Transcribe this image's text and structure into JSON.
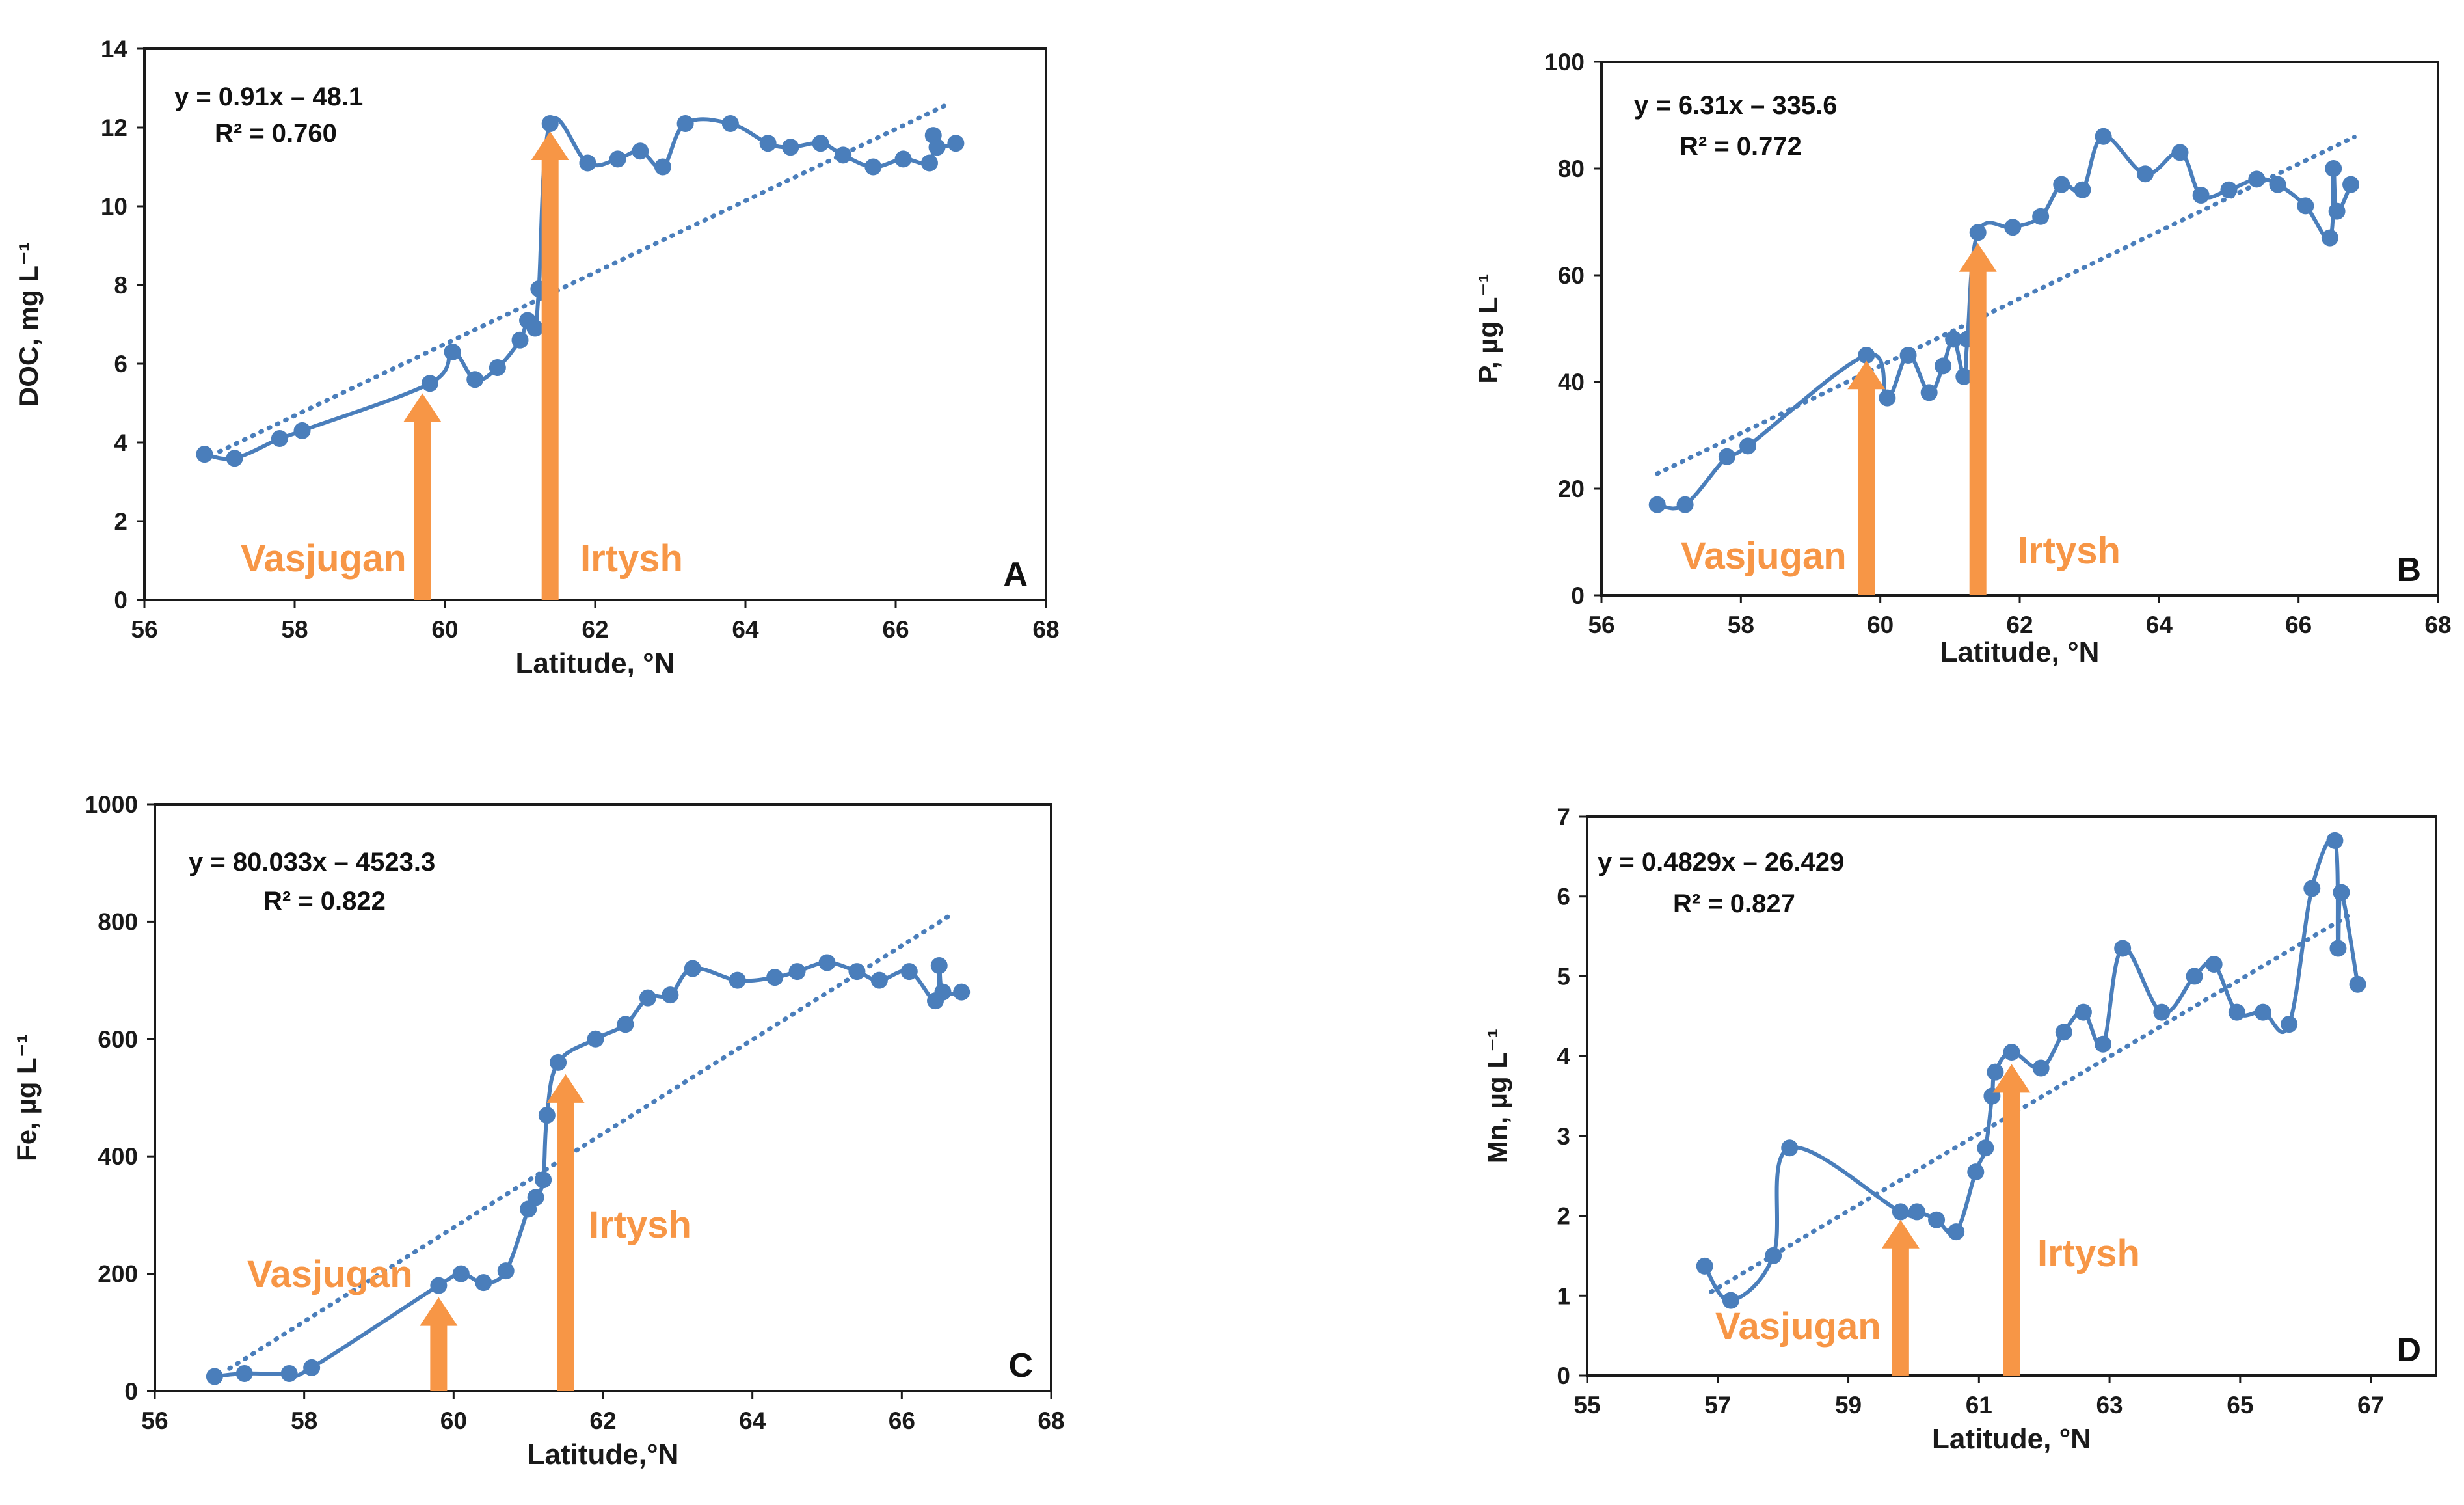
{
  "colors": {
    "series": "#4a7ebb",
    "trend": "#4a7ebb",
    "arrow": "#f79646",
    "axis": "#1a1a1a",
    "text": "#111111"
  },
  "chart_data": [
    {
      "type": "scatter",
      "panel": "A",
      "xlabel": "Latitude, °N",
      "ylabel": "DOC, mg L⁻¹",
      "xlim": [
        56,
        68
      ],
      "xticks": [
        56,
        58,
        60,
        62,
        64,
        66,
        68
      ],
      "ylim": [
        0,
        14
      ],
      "yticks": [
        0,
        2,
        4,
        6,
        8,
        10,
        12,
        14
      ],
      "equation": "y = 0.91x – 48.1",
      "r2": "R² = 0.760",
      "trend": {
        "slope": 0.91,
        "intercept": -48.1,
        "x": [
          57,
          66.7
        ]
      },
      "series": [
        {
          "name": "DOC",
          "x": [
            56.8,
            57.2,
            57.8,
            58.1,
            59.8,
            60.1,
            60.4,
            60.7,
            61.0,
            61.1,
            61.2,
            61.25,
            61.4,
            61.9,
            62.3,
            62.6,
            62.9,
            63.2,
            63.8,
            64.3,
            64.6,
            65.0,
            65.3,
            65.7,
            66.1,
            66.45,
            66.5,
            66.55,
            66.8
          ],
          "y": [
            3.7,
            3.6,
            4.1,
            4.3,
            5.5,
            6.3,
            5.6,
            5.9,
            6.6,
            7.1,
            6.9,
            7.9,
            12.1,
            11.1,
            11.2,
            11.4,
            11.0,
            12.1,
            12.1,
            11.6,
            11.5,
            11.6,
            11.3,
            11.0,
            11.2,
            11.1,
            11.8,
            11.5,
            11.6
          ]
        }
      ],
      "arrows": [
        {
          "label": "Vasjugan",
          "x": 59.7,
          "y_top": 5.25
        },
        {
          "label": "Irtysh",
          "x": 61.4,
          "y_top": 11.9
        }
      ]
    },
    {
      "type": "scatter",
      "panel": "B",
      "xlabel": "Latitude, °N",
      "ylabel": "P, µg L⁻¹",
      "xlim": [
        56,
        68
      ],
      "xticks": [
        56,
        58,
        60,
        62,
        64,
        66,
        68
      ],
      "ylim": [
        0,
        100
      ],
      "yticks": [
        0,
        20,
        40,
        60,
        80,
        100
      ],
      "equation": "y = 6.31x – 335.6",
      "r2": "R² = 0.772",
      "trend": {
        "slope": 6.31,
        "intercept": -335.6,
        "x": [
          56.8,
          66.8
        ]
      },
      "series": [
        {
          "name": "P",
          "x": [
            56.8,
            57.2,
            57.8,
            58.1,
            59.8,
            60.1,
            60.4,
            60.7,
            60.9,
            61.05,
            61.2,
            61.25,
            61.4,
            61.9,
            62.3,
            62.6,
            62.9,
            63.2,
            63.8,
            64.3,
            64.6,
            65.0,
            65.4,
            65.7,
            66.1,
            66.45,
            66.5,
            66.55,
            66.75
          ],
          "y": [
            17,
            17,
            26,
            28,
            45,
            37,
            45,
            38,
            43,
            48,
            41,
            48,
            68,
            69,
            71,
            77,
            76,
            86,
            79,
            83,
            75,
            76,
            78,
            77,
            73,
            67,
            80,
            72,
            77
          ]
        }
      ],
      "arrows": [
        {
          "label": "Vasjugan",
          "x": 59.8,
          "y_top": 44
        },
        {
          "label": "Irtysh",
          "x": 61.4,
          "y_top": 66
        }
      ]
    },
    {
      "type": "scatter",
      "panel": "C",
      "xlabel": "Latitude,°N",
      "ylabel": "Fe, µg L⁻¹",
      "xlim": [
        56,
        68
      ],
      "xticks": [
        56,
        58,
        60,
        62,
        64,
        66,
        68
      ],
      "ylim": [
        0,
        1000
      ],
      "yticks": [
        0,
        200,
        400,
        600,
        800,
        1000
      ],
      "equation": "y = 80.033x – 4523.3",
      "r2": "R² = 0.822",
      "trend": {
        "slope": 80.033,
        "intercept": -4523.3,
        "x": [
          57,
          66.7
        ]
      },
      "series": [
        {
          "name": "Fe",
          "x": [
            56.8,
            57.2,
            57.8,
            58.1,
            59.8,
            60.1,
            60.4,
            60.7,
            61.0,
            61.1,
            61.2,
            61.25,
            61.4,
            61.9,
            62.3,
            62.6,
            62.9,
            63.2,
            63.8,
            64.3,
            64.6,
            65.0,
            65.4,
            65.7,
            66.1,
            66.45,
            66.5,
            66.55,
            66.8
          ],
          "y": [
            25,
            30,
            30,
            40,
            180,
            200,
            185,
            205,
            310,
            330,
            360,
            470,
            560,
            600,
            625,
            670,
            675,
            720,
            700,
            705,
            715,
            730,
            715,
            700,
            715,
            665,
            725,
            680,
            680
          ]
        }
      ],
      "arrows": [
        {
          "label": "Vasjugan",
          "x": 59.8,
          "y_top": 160
        },
        {
          "label": "Irtysh",
          "x": 61.5,
          "y_top": 540
        }
      ]
    },
    {
      "type": "scatter",
      "panel": "D",
      "xlabel": "Latitude, °N",
      "ylabel": "Mn, µg L⁻¹",
      "xlim": [
        55,
        68
      ],
      "xticks": [
        55,
        57,
        59,
        61,
        63,
        65,
        67
      ],
      "ylim": [
        0,
        7
      ],
      "yticks": [
        0,
        1,
        2,
        3,
        4,
        5,
        6,
        7
      ],
      "equation": "y = 0.4829x – 26.429",
      "r2": "R² = 0.827",
      "trend": {
        "slope": 0.4829,
        "intercept": -26.429,
        "x": [
          56.9,
          66.7
        ]
      },
      "series": [
        {
          "name": "Mn",
          "x": [
            56.8,
            57.2,
            57.85,
            58.1,
            59.8,
            60.05,
            60.35,
            60.65,
            60.95,
            61.1,
            61.2,
            61.25,
            61.5,
            61.95,
            62.3,
            62.6,
            62.9,
            63.2,
            63.8,
            64.3,
            64.6,
            64.95,
            65.35,
            65.75,
            66.1,
            66.45,
            66.5,
            66.55,
            66.8
          ],
          "y": [
            1.37,
            0.94,
            1.5,
            2.85,
            2.05,
            2.05,
            1.95,
            1.8,
            2.55,
            2.85,
            3.5,
            3.8,
            4.05,
            3.85,
            4.3,
            4.55,
            4.15,
            5.35,
            4.55,
            5.0,
            5.15,
            4.55,
            4.55,
            4.4,
            6.1,
            6.7,
            5.35,
            6.05,
            4.9
          ]
        }
      ],
      "arrows": [
        {
          "label": "Vasjugan",
          "x": 59.8,
          "y_top": 1.95
        },
        {
          "label": "Irtysh",
          "x": 61.5,
          "y_top": 3.9
        }
      ]
    }
  ]
}
